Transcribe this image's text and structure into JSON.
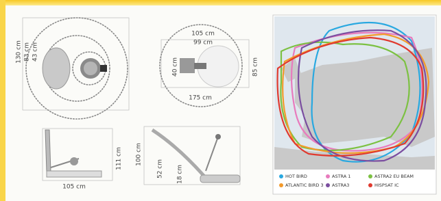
{
  "views": {
    "top_left": {
      "labels": [
        "130 cm",
        "83 cm",
        "43 cm"
      ]
    },
    "top_middle": {
      "labels": [
        "105 cm",
        "99 cm",
        "40 cm",
        "85 cm",
        "175 cm"
      ]
    },
    "bottom_left": {
      "labels": [
        "111 cm",
        "105 cm"
      ]
    },
    "bottom_middle": {
      "labels": [
        "100 cm",
        "52 cm",
        "18 cm"
      ]
    }
  },
  "map": {
    "legend": [
      {
        "name": "HOT BIRD",
        "color": "#29a8e0"
      },
      {
        "name": "ASTRA 1",
        "color": "#e87bbd"
      },
      {
        "name": "ASTRA2 EU BEAM",
        "color": "#7cc142"
      },
      {
        "name": "ATLANTIC BIRD 3",
        "color": "#f39a2b"
      },
      {
        "name": "ASTRA3",
        "color": "#7b4ea0"
      },
      {
        "name": "HISPSAT IC",
        "color": "#e03a2f"
      }
    ]
  }
}
